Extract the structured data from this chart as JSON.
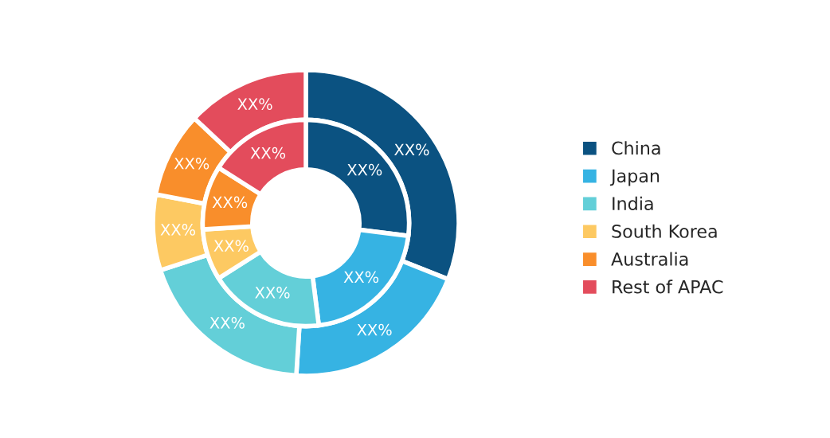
{
  "chart_data": {
    "type": "donut",
    "categories": [
      "China",
      "Japan",
      "India",
      "South Korea",
      "Australia",
      "Rest of APAC"
    ],
    "colors": [
      "#0b5281",
      "#36b3e3",
      "#63cfd8",
      "#fdc962",
      "#f98e2b",
      "#e34c5c"
    ],
    "series": [
      {
        "values": [
          31,
          20,
          19,
          8,
          9,
          13
        ],
        "value_labels": [
          "XX%",
          "XX%",
          "XX%",
          "XX%",
          "XX%",
          "XX%"
        ]
      },
      {
        "values": [
          27,
          21,
          18,
          8,
          10,
          16
        ],
        "value_labels": [
          "XX%",
          "XX%",
          "XX%",
          "XX%",
          "XX%",
          "XX%"
        ]
      }
    ],
    "legend": "right"
  }
}
